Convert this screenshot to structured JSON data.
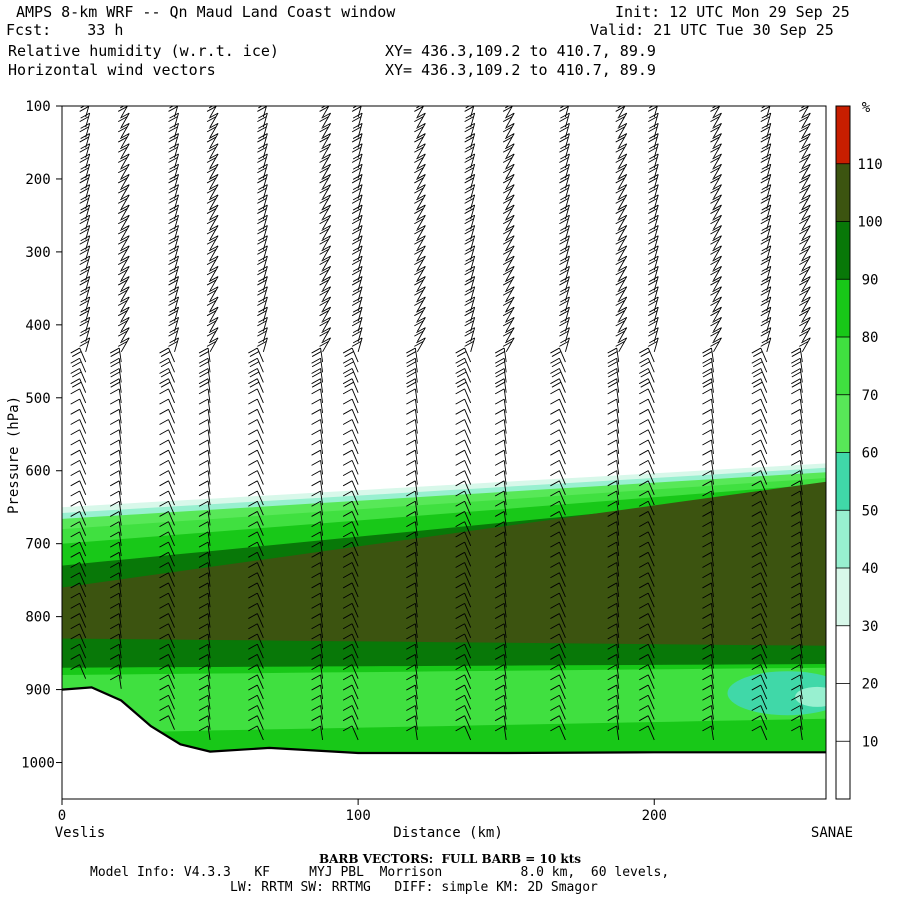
{
  "header": {
    "line1_left": "AMPS 8-km WRF -- Qn Maud Land Coast window",
    "line1_right": "Init: 12 UTC Mon 29 Sep 25",
    "line2_left": "Fcst:    33 h",
    "line2_right": "Valid: 21 UTC Tue 30 Sep 25",
    "line3_left": "Relative humidity (w.r.t. ice)",
    "line3_mid": "XY= 436.3,109.2 to 410.7, 89.9",
    "line4_left": "Horizontal wind vectors",
    "line4_mid": "XY= 436.3,109.2 to 410.7, 89.9"
  },
  "footer": {
    "barb_note": "BARB VECTORS:  FULL BARB = 10 kts",
    "model_info": "Model Info: V4.3.3   KF     MYJ PBL  Morrison          8.0 km,  60 levels,",
    "physics": "LW: RRTM SW: RRTMG   DIFF: simple KM: 2D Smagor"
  },
  "chart_data": {
    "type": "heatmap",
    "title": "Relative humidity (w.r.t. ice)",
    "xlabel": "Distance (km)",
    "ylabel": "Pressure (hPa)",
    "xlim": [
      0,
      258
    ],
    "ylim": [
      1050,
      100
    ],
    "x_ticks": [
      0,
      100,
      200
    ],
    "x_tick_labels": [
      "0",
      "100",
      "200"
    ],
    "y_ticks": [
      100,
      200,
      300,
      400,
      500,
      600,
      700,
      800,
      900,
      1000
    ],
    "y_tick_labels": [
      "100",
      "200",
      "300",
      "400",
      "500",
      "600",
      "700",
      "800",
      "900",
      "1000"
    ],
    "x_endpoint_labels": [
      "Veslis",
      "SANAE"
    ],
    "colorbar": {
      "unit": "%",
      "labels": [
        "10",
        "20",
        "30",
        "40",
        "50",
        "60",
        "70",
        "80",
        "90",
        "100",
        "110"
      ],
      "bins": [
        {
          "min": 0,
          "max": 10,
          "color": "#ffffff"
        },
        {
          "min": 10,
          "max": 20,
          "color": "#ffffff"
        },
        {
          "min": 20,
          "max": 30,
          "color": "#ffffff"
        },
        {
          "min": 30,
          "max": 40,
          "color": "#d8f8ea"
        },
        {
          "min": 40,
          "max": 50,
          "color": "#98f0d0"
        },
        {
          "min": 50,
          "max": 60,
          "color": "#40d8a8"
        },
        {
          "min": 60,
          "max": 70,
          "color": "#58e858"
        },
        {
          "min": 70,
          "max": 80,
          "color": "#40e040"
        },
        {
          "min": 80,
          "max": 90,
          "color": "#18c818"
        },
        {
          "min": 90,
          "max": 100,
          "color": "#087808"
        },
        {
          "min": 100,
          "max": 110,
          "color": "#3c5410"
        },
        {
          "min": 110,
          "max": 120,
          "color": "#c81e00"
        }
      ]
    },
    "moist_layer": {
      "top_hpa_start": 650,
      "top_hpa_end": 590,
      "saturated_core_top_hpa_start": 760,
      "saturated_core_top_hpa_end": 615,
      "saturated_core_bottom_hpa": 830,
      "lower_drier_band_hpa": [
        880,
        960
      ]
    },
    "terrain": {
      "x_km": [
        0,
        10,
        20,
        30,
        40,
        50,
        70,
        100,
        150,
        200,
        258
      ],
      "surface_hpa": [
        900,
        897,
        915,
        950,
        975,
        985,
        980,
        987,
        987,
        986,
        986
      ]
    },
    "wind_vectors": {
      "full_barb_kts": 10,
      "column_x_km": [
        8,
        20,
        38,
        50,
        68,
        88,
        100,
        120,
        138,
        150,
        170,
        188,
        200,
        220,
        238,
        250
      ]
    }
  }
}
